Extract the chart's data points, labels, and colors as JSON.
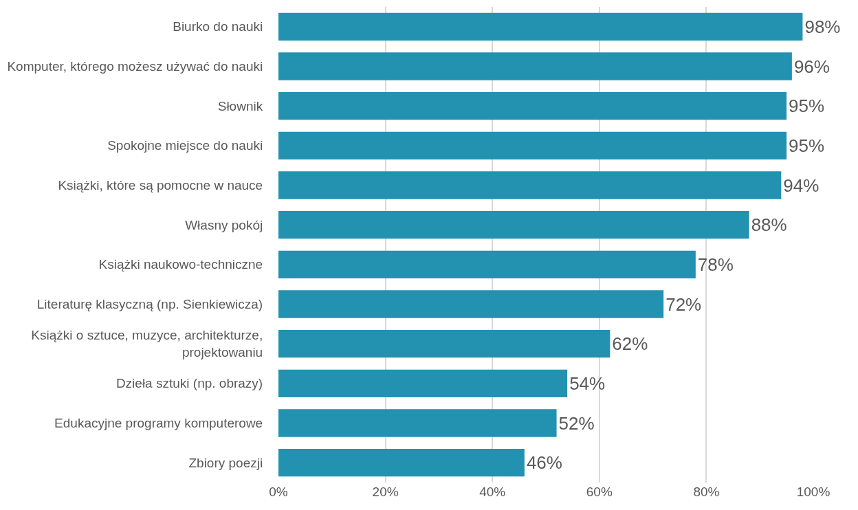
{
  "chart_data": {
    "type": "bar",
    "orientation": "horizontal",
    "categories": [
      "Biurko do nauki",
      "Komputer, którego możesz używać do nauki",
      "Słownik",
      "Spokojne miejsce do nauki",
      "Książki, które są pomocne w nauce",
      "Własny pokój",
      "Książki naukowo-techniczne",
      "Literaturę klasyczną (np. Sienkiewicza)",
      "Książki o sztuce, muzyce, architekturze, projektowaniu",
      "Dzieła sztuki (np. obrazy)",
      "Edukacyjne programy komputerowe",
      "Zbiory poezji"
    ],
    "values": [
      98,
      96,
      95,
      95,
      94,
      88,
      78,
      72,
      62,
      54,
      52,
      46
    ],
    "value_labels": [
      "98%",
      "96%",
      "95%",
      "95%",
      "94%",
      "88%",
      "78%",
      "72%",
      "62%",
      "54%",
      "52%",
      "46%"
    ],
    "color": "#2391b0",
    "xlim": [
      0,
      100
    ],
    "xticks": [
      {
        "value": 0,
        "label": "0%"
      },
      {
        "value": 20,
        "label": "20%"
      },
      {
        "value": 40,
        "label": "40%"
      },
      {
        "value": 60,
        "label": "60%"
      },
      {
        "value": 80,
        "label": "80%"
      },
      {
        "value": 100,
        "label": "100%"
      }
    ],
    "grid": "x"
  }
}
